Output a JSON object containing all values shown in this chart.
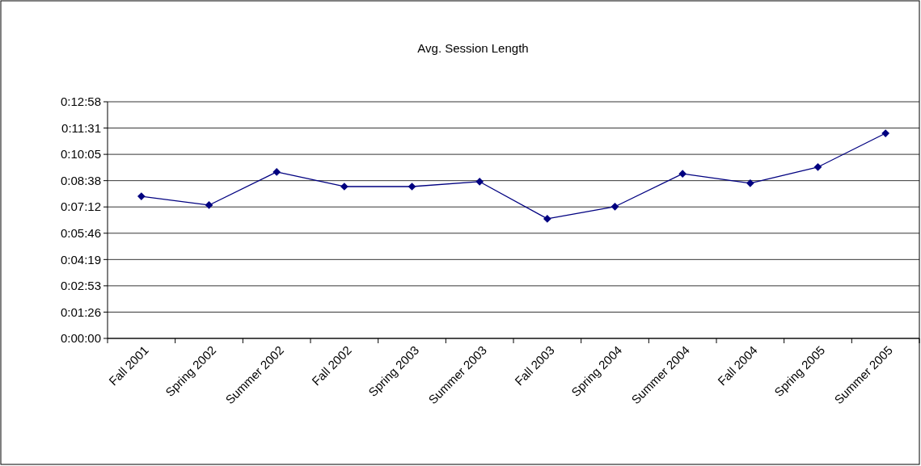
{
  "chart_data": {
    "type": "line",
    "title": "Avg. Session Length",
    "categories": [
      "Fall 2001",
      "Spring 2002",
      "Summer 2002",
      "Fall 2002",
      "Spring 2003",
      "Summer 2003",
      "Fall 2003",
      "Spring 2004",
      "Summer 2004",
      "Fall 2004",
      "Spring 2005",
      "Summer 2005"
    ],
    "series": [
      {
        "color": "#000080",
        "values": [
          467,
          438,
          547,
          499,
          499,
          515,
          393,
          433,
          541,
          510,
          563,
          674
        ]
      }
    ],
    "ylim": [
      0,
      777.6
    ],
    "yticks": [
      {
        "value": 0,
        "label": "0:00:00"
      },
      {
        "value": 86.4,
        "label": "0:01:26"
      },
      {
        "value": 172.8,
        "label": "0:02:53"
      },
      {
        "value": 259.2,
        "label": "0:04:19"
      },
      {
        "value": 345.6,
        "label": "0:05:46"
      },
      {
        "value": 432,
        "label": "0:07:12"
      },
      {
        "value": 518.4,
        "label": "0:08:38"
      },
      {
        "value": 604.8,
        "label": "0:10:05"
      },
      {
        "value": 691.2,
        "label": "0:11:31"
      },
      {
        "value": 777.6,
        "label": "0:12:58"
      }
    ],
    "grid": "y",
    "marker": "diamond",
    "line_style": "solid"
  }
}
